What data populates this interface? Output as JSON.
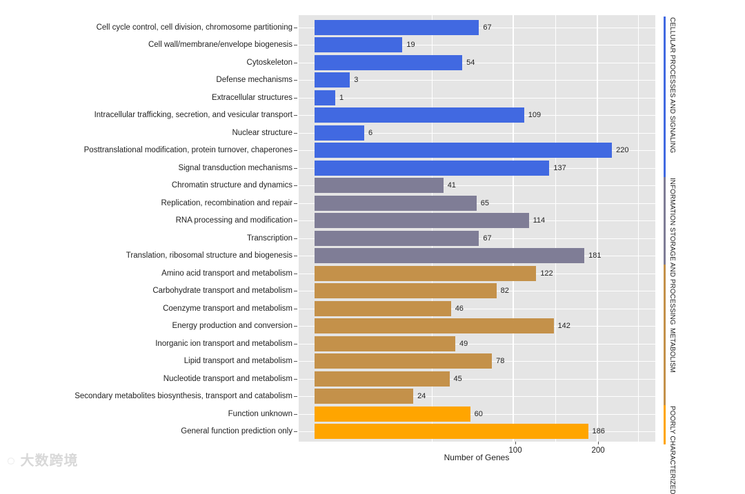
{
  "chart_data": {
    "type": "bar",
    "orientation": "horizontal",
    "xlabel": "Number of Genes",
    "x_scale": "sqrt",
    "x_ticks": [
      100,
      200
    ],
    "xlim": [
      0,
      290
    ],
    "grid": true,
    "groups": [
      {
        "name": "CELLULAR PROCESSES AND SIGNALING",
        "color": "#4169E1"
      },
      {
        "name": "INFORMATION STORAGE AND PROCESSING",
        "color": "#7F7D96"
      },
      {
        "name": "METABOLISM",
        "color": "#C4914A"
      },
      {
        "name": "POORLY CHARACTERIZED",
        "color": "#FFA500"
      }
    ],
    "categories": [
      {
        "label": "Cell cycle control, cell division, chromosome partitioning",
        "value": 67,
        "group": 0
      },
      {
        "label": "Cell wall/membrane/envelope biogenesis",
        "value": 19,
        "group": 0
      },
      {
        "label": "Cytoskeleton",
        "value": 54,
        "group": 0
      },
      {
        "label": "Defense mechanisms",
        "value": 3,
        "group": 0
      },
      {
        "label": "Extracellular structures",
        "value": 1,
        "group": 0
      },
      {
        "label": "Intracellular trafficking, secretion, and vesicular transport",
        "value": 109,
        "group": 0
      },
      {
        "label": "Nuclear structure",
        "value": 6,
        "group": 0
      },
      {
        "label": "Posttranslational modification, protein turnover, chaperones",
        "value": 220,
        "group": 0
      },
      {
        "label": "Signal transduction mechanisms",
        "value": 137,
        "group": 0
      },
      {
        "label": "Chromatin structure and dynamics",
        "value": 41,
        "group": 1
      },
      {
        "label": "Replication, recombination and repair",
        "value": 65,
        "group": 1
      },
      {
        "label": "RNA processing and modification",
        "value": 114,
        "group": 1
      },
      {
        "label": "Transcription",
        "value": 67,
        "group": 1
      },
      {
        "label": "Translation, ribosomal structure and biogenesis",
        "value": 181,
        "group": 1
      },
      {
        "label": "Amino acid transport and metabolism",
        "value": 122,
        "group": 2
      },
      {
        "label": "Carbohydrate transport and metabolism",
        "value": 82,
        "group": 2
      },
      {
        "label": "Coenzyme transport and metabolism",
        "value": 46,
        "group": 2
      },
      {
        "label": "Energy production and conversion",
        "value": 142,
        "group": 2
      },
      {
        "label": "Inorganic ion transport and metabolism",
        "value": 49,
        "group": 2
      },
      {
        "label": "Lipid transport and metabolism",
        "value": 78,
        "group": 2
      },
      {
        "label": "Nucleotide transport and metabolism",
        "value": 45,
        "group": 2
      },
      {
        "label": "Secondary metabolites biosynthesis, transport and catabolism",
        "value": 24,
        "group": 2
      },
      {
        "label": "Function unknown",
        "value": 60,
        "group": 3
      },
      {
        "label": "General function prediction only",
        "value": 186,
        "group": 3
      }
    ]
  },
  "watermark": "大数跨境"
}
